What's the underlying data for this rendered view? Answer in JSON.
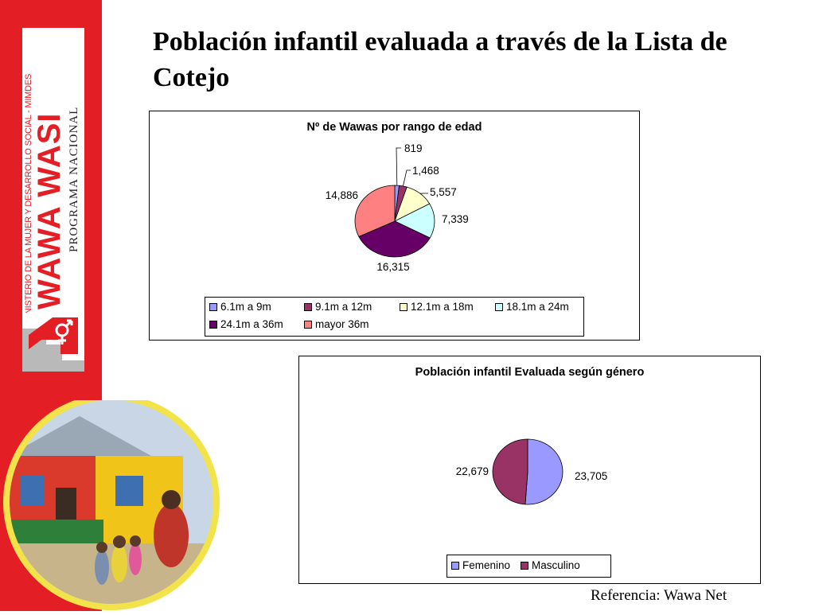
{
  "slide": {
    "title": "Población infantil evaluada a través de la Lista de Cotejo",
    "reference": "Referencia: Wawa Net"
  },
  "logo": {
    "ministry": "MINISTERIO DE LA MUJER Y DESARROLLO SOCIAL - MIMDES",
    "name": "WAWA WASI",
    "program": "PROGRAMA NACIONAL",
    "brand_color": "#e31e24"
  },
  "photo": {
    "icon": "wawa-wasi-building-photo"
  },
  "chart_data": [
    {
      "type": "pie",
      "title": "Nº de Wawas por rango de edad",
      "categories": [
        "6.1m a 9m",
        "9.1m a 12m",
        "12.1m a 18m",
        "18.1m a 24m",
        "24.1m a 36m",
        "mayor 36m"
      ],
      "values": [
        819,
        1468,
        5557,
        7339,
        16315,
        14886
      ],
      "value_labels": [
        "819",
        "1,468",
        "5,557",
        "7,339",
        "16,315",
        "14,886"
      ],
      "colors": [
        "#9999ff",
        "#993366",
        "#ffffcc",
        "#ccffff",
        "#660066",
        "#ff8080"
      ],
      "legend": "bottom"
    },
    {
      "type": "pie",
      "title": "Población infantil Evaluada según género",
      "categories": [
        "Femenino",
        "Masculino"
      ],
      "values": [
        23705,
        22679
      ],
      "value_labels": [
        "23,705",
        "22,679"
      ],
      "colors": [
        "#9999ff",
        "#993366"
      ],
      "legend": "bottom"
    }
  ]
}
